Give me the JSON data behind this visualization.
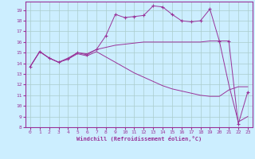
{
  "xlabel": "Windchill (Refroidissement éolien,°C)",
  "bg_color": "#cceeff",
  "line_color": "#993399",
  "grid_color": "#aacccc",
  "xlim": [
    -0.5,
    23.5
  ],
  "ylim": [
    8,
    19.8
  ],
  "yticks": [
    8,
    9,
    10,
    11,
    12,
    13,
    14,
    15,
    16,
    17,
    18,
    19
  ],
  "xticks": [
    0,
    1,
    2,
    3,
    4,
    5,
    6,
    7,
    8,
    9,
    10,
    11,
    12,
    13,
    14,
    15,
    16,
    17,
    18,
    19,
    20,
    21,
    22,
    23
  ],
  "series1_x": [
    0,
    1,
    2,
    3,
    4,
    5,
    6,
    7,
    8,
    9,
    10,
    11,
    12,
    13,
    14,
    15,
    16,
    17,
    18,
    19,
    20,
    21,
    22,
    23
  ],
  "series1_y": [
    13.7,
    15.1,
    14.5,
    14.1,
    14.4,
    15.0,
    14.8,
    15.3,
    16.6,
    18.6,
    18.3,
    18.4,
    18.5,
    19.4,
    19.3,
    18.6,
    18.0,
    17.9,
    18.0,
    19.1,
    16.1,
    16.1,
    8.3,
    11.3
  ],
  "series2_x": [
    0,
    1,
    2,
    3,
    4,
    5,
    6,
    7,
    8,
    9,
    10,
    11,
    12,
    13,
    14,
    15,
    16,
    17,
    18,
    19,
    20,
    21,
    22,
    23
  ],
  "series2_y": [
    13.7,
    15.1,
    14.5,
    14.1,
    14.5,
    15.0,
    14.9,
    15.3,
    15.5,
    15.7,
    15.8,
    15.9,
    16.0,
    16.0,
    16.0,
    16.0,
    16.0,
    16.0,
    16.0,
    16.1,
    16.1,
    12.0,
    8.5,
    9.0
  ],
  "series3_x": [
    0,
    1,
    2,
    3,
    4,
    5,
    6,
    7,
    8,
    9,
    10,
    11,
    12,
    13,
    14,
    15,
    16,
    17,
    18,
    19,
    20,
    21,
    22,
    23
  ],
  "series3_y": [
    13.7,
    15.1,
    14.5,
    14.1,
    14.4,
    14.9,
    14.7,
    15.1,
    14.6,
    14.1,
    13.6,
    13.1,
    12.7,
    12.3,
    11.9,
    11.6,
    11.4,
    11.2,
    11.0,
    10.9,
    10.9,
    11.5,
    11.8,
    11.8
  ]
}
